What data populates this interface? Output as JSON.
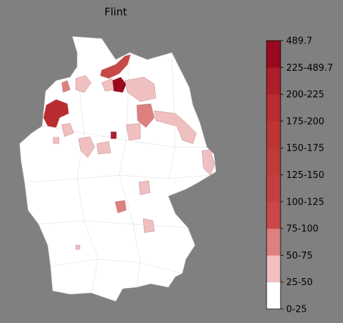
{
  "title": "Flint",
  "legend": {
    "colors": [
      "#ffffff",
      "#f0c0c0",
      "#dc8080",
      "#c84848",
      "#c44040",
      "#c03a3a",
      "#bc3434",
      "#b82c30",
      "#ac1e2a",
      "#9a0a1e"
    ],
    "tick_labels": [
      "0-25",
      "25-50",
      "50-75",
      "75-100",
      "100-125",
      "125-150",
      "150-175",
      "175-200",
      "200-225",
      "225-489.7",
      "489.7"
    ]
  }
}
